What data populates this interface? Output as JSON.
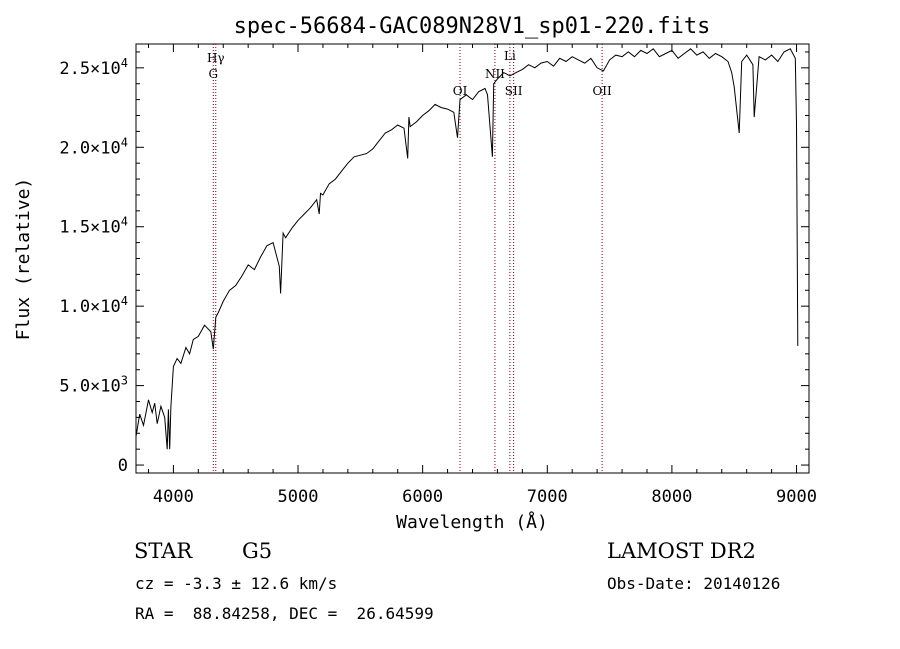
{
  "chart_data": {
    "type": "line",
    "title": "spec-56684-GAC089N28V1_sp01-220.fits",
    "xlabel": "Wavelength (Å)",
    "ylabel": "Flux (relative)",
    "xlim": [
      3700,
      9100
    ],
    "ylim": [
      -500,
      26500
    ],
    "xticks": [
      {
        "value": 4000,
        "label": "4000"
      },
      {
        "value": 5000,
        "label": "5000"
      },
      {
        "value": 6000,
        "label": "6000"
      },
      {
        "value": 7000,
        "label": "7000"
      },
      {
        "value": 8000,
        "label": "8000"
      },
      {
        "value": 9000,
        "label": "9000"
      }
    ],
    "yticks": [
      {
        "value": 0,
        "mantissa": "0",
        "exponent": ""
      },
      {
        "value": 5000,
        "mantissa": "5.0×10",
        "exponent": "3"
      },
      {
        "value": 10000,
        "mantissa": "1.0×10",
        "exponent": "4"
      },
      {
        "value": 15000,
        "mantissa": "1.5×10",
        "exponent": "4"
      },
      {
        "value": 20000,
        "mantissa": "2.0×10",
        "exponent": "4"
      },
      {
        "value": 25000,
        "mantissa": "2.5×10",
        "exponent": "4"
      }
    ],
    "series": [
      {
        "x": [
          3700,
          3730,
          3760,
          3800,
          3830,
          3850,
          3870,
          3900,
          3930,
          3950,
          3960,
          3970,
          3980,
          4000,
          4030,
          4060,
          4100,
          4130,
          4160,
          4200,
          4250,
          4300,
          4320,
          4340,
          4360,
          4400,
          4450,
          4500,
          4550,
          4600,
          4650,
          4700,
          4750,
          4800,
          4850,
          4860,
          4880,
          4900,
          4950,
          5000,
          5050,
          5100,
          5150,
          5170,
          5180,
          5200,
          5250,
          5300,
          5350,
          5400,
          5450,
          5500,
          5550,
          5600,
          5650,
          5700,
          5750,
          5800,
          5850,
          5880,
          5890,
          5900,
          5950,
          6000,
          6050,
          6100,
          6150,
          6200,
          6250,
          6280,
          6300,
          6350,
          6400,
          6450,
          6500,
          6520,
          6560,
          6570,
          6600,
          6650,
          6700,
          6750,
          6800,
          6850,
          6900,
          6950,
          7000,
          7050,
          7100,
          7150,
          7200,
          7250,
          7300,
          7350,
          7400,
          7450,
          7500,
          7550,
          7600,
          7650,
          7700,
          7750,
          7800,
          7850,
          7900,
          7950,
          8000,
          8050,
          8100,
          8150,
          8200,
          8250,
          8300,
          8350,
          8400,
          8450,
          8480,
          8500,
          8540,
          8560,
          8600,
          8650,
          8660,
          8700,
          8750,
          8800,
          8850,
          8900,
          8950,
          8990,
          9000,
          9010
        ],
        "y": [
          1800,
          3200,
          2500,
          4100,
          3300,
          3900,
          2600,
          3700,
          3000,
          1000,
          3500,
          1000,
          3700,
          6200,
          6700,
          6400,
          7400,
          7000,
          7900,
          8100,
          8800,
          8400,
          7300,
          9300,
          9600,
          10300,
          11000,
          11300,
          11900,
          12600,
          12300,
          13100,
          13800,
          14000,
          12500,
          10800,
          14600,
          14300,
          14900,
          15400,
          15800,
          16200,
          16700,
          15800,
          17100,
          17000,
          17700,
          18000,
          18500,
          19000,
          19400,
          19500,
          19600,
          19900,
          20400,
          20900,
          21100,
          21400,
          21200,
          19300,
          21900,
          21300,
          21600,
          22000,
          22300,
          22700,
          22500,
          22400,
          22200,
          20600,
          23000,
          23300,
          23000,
          23500,
          23700,
          23300,
          19400,
          24000,
          24300,
          24700,
          24500,
          24700,
          24900,
          25200,
          25000,
          25300,
          25400,
          25100,
          25600,
          25400,
          25700,
          25500,
          25300,
          25600,
          25000,
          24800,
          25500,
          25800,
          25700,
          26000,
          25700,
          26100,
          25900,
          26200,
          25700,
          25900,
          26100,
          25600,
          25900,
          26200,
          25800,
          26000,
          25600,
          25900,
          25700,
          25400,
          24700,
          23800,
          20900,
          25400,
          25800,
          25200,
          21900,
          25700,
          25500,
          25800,
          25400,
          26000,
          26200,
          25600,
          21500,
          7500
        ]
      }
    ],
    "lines": [
      {
        "x": 4320,
        "label": "G"
      },
      {
        "x": 4340,
        "label": "Hγ"
      },
      {
        "x": 6300,
        "label": "OI"
      },
      {
        "x": 6580,
        "label": "NII"
      },
      {
        "x": 6700,
        "label": "Li"
      },
      {
        "x": 6730,
        "label": "SII"
      },
      {
        "x": 7440,
        "label": "OII"
      }
    ],
    "line_color": "#8b0000",
    "grid": false,
    "legend": "none"
  },
  "info": {
    "class": "STAR",
    "subclass": "G5",
    "survey": "LAMOST DR2",
    "cz": "cz = -3.3 ± 12.6 km/s",
    "obs_date": "Obs-Date: 20140126",
    "coords": "RA =  88.84258, DEC =  26.64599"
  }
}
